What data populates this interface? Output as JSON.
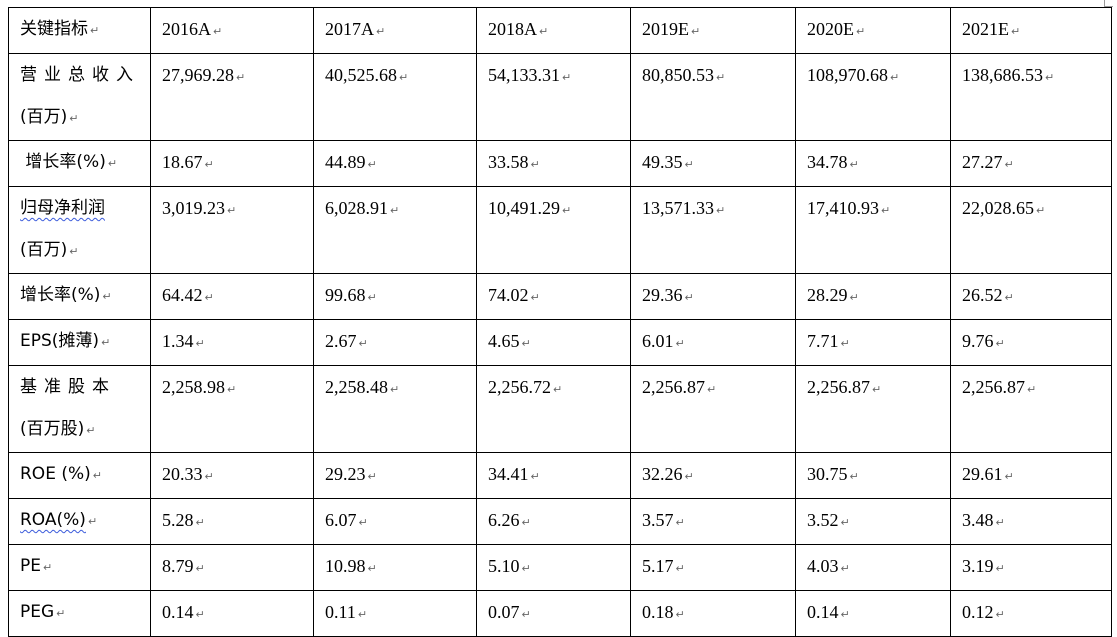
{
  "paragraph_mark": "↵",
  "header": {
    "label": "关键指标",
    "years": [
      "2016A",
      "2017A",
      "2018A",
      "2019E",
      "2020E",
      "2021E"
    ]
  },
  "rows": [
    {
      "label_line1": "营业总收入",
      "label_line2": "(百万)",
      "values": [
        "27,969.28",
        "40,525.68",
        "54,133.31",
        "80,850.53",
        "108,970.68",
        "138,686.53"
      ]
    },
    {
      "label_line1": " 增长率(%)",
      "values": [
        "18.67",
        "44.89",
        "33.58",
        "49.35",
        "34.78",
        "27.27"
      ]
    },
    {
      "label_line1": "归母净利润",
      "label_line2": "(百万)",
      "values": [
        "3,019.23",
        "6,028.91",
        "10,491.29",
        "13,571.33",
        "17,410.93",
        "22,028.65"
      ]
    },
    {
      "label_line1": "增长率(%)",
      "values": [
        "64.42",
        "99.68",
        "74.02",
        "29.36",
        "28.29",
        "26.52"
      ]
    },
    {
      "label_line1": "EPS(摊薄)",
      "values": [
        "1.34",
        "2.67",
        "4.65",
        "6.01",
        "7.71",
        "9.76"
      ]
    },
    {
      "label_line1": "基准股本",
      "label_line2": "(百万股)",
      "values": [
        "2,258.98",
        "2,258.48",
        "2,256.72",
        "2,256.87",
        "2,256.87",
        "2,256.87"
      ]
    },
    {
      "label_line1": "ROE (%)",
      "values": [
        "20.33",
        "29.23",
        "34.41",
        "32.26",
        "30.75",
        "29.61"
      ]
    },
    {
      "label_line1": "ROA(%)",
      "values": [
        "5.28",
        "6.07",
        "6.26",
        "3.57",
        "3.52",
        "3.48"
      ]
    },
    {
      "label_line1": "PE",
      "values": [
        "8.79",
        "10.98",
        "5.10",
        "5.17",
        "4.03",
        "3.19"
      ]
    },
    {
      "label_line1": "PEG",
      "values": [
        "0.14",
        "0.11",
        "0.07",
        "0.18",
        "0.14",
        "0.12"
      ]
    }
  ]
}
